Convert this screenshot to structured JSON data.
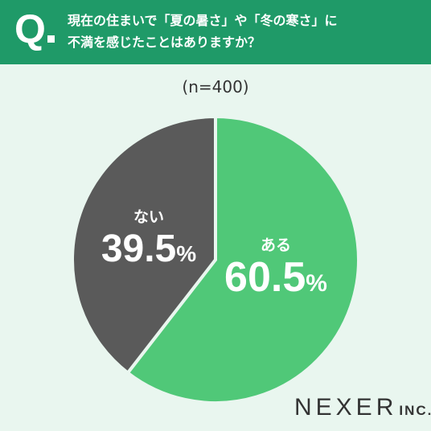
{
  "header": {
    "question_mark": "Q",
    "question_line1": "現在の住まいで「夏の暑さ」や「冬の寒さ」に",
    "question_line2": "不満を感じたことはありますか？"
  },
  "sample_label": "(n=400)",
  "colors": {
    "header": "#1f9a68",
    "aru": "#50c878",
    "nai": "#5a5a5a",
    "background": "#e9f6ef"
  },
  "chart_data": {
    "type": "pie",
    "title": "",
    "slices": [
      {
        "name": "ある",
        "value": 60.5,
        "display": "60.5",
        "unit": "%",
        "color": "#50c878"
      },
      {
        "name": "ない",
        "value": 39.5,
        "display": "39.5",
        "unit": "%",
        "color": "#5a5a5a"
      }
    ]
  },
  "logo": {
    "main": "NEXER",
    "sub": "INC."
  }
}
